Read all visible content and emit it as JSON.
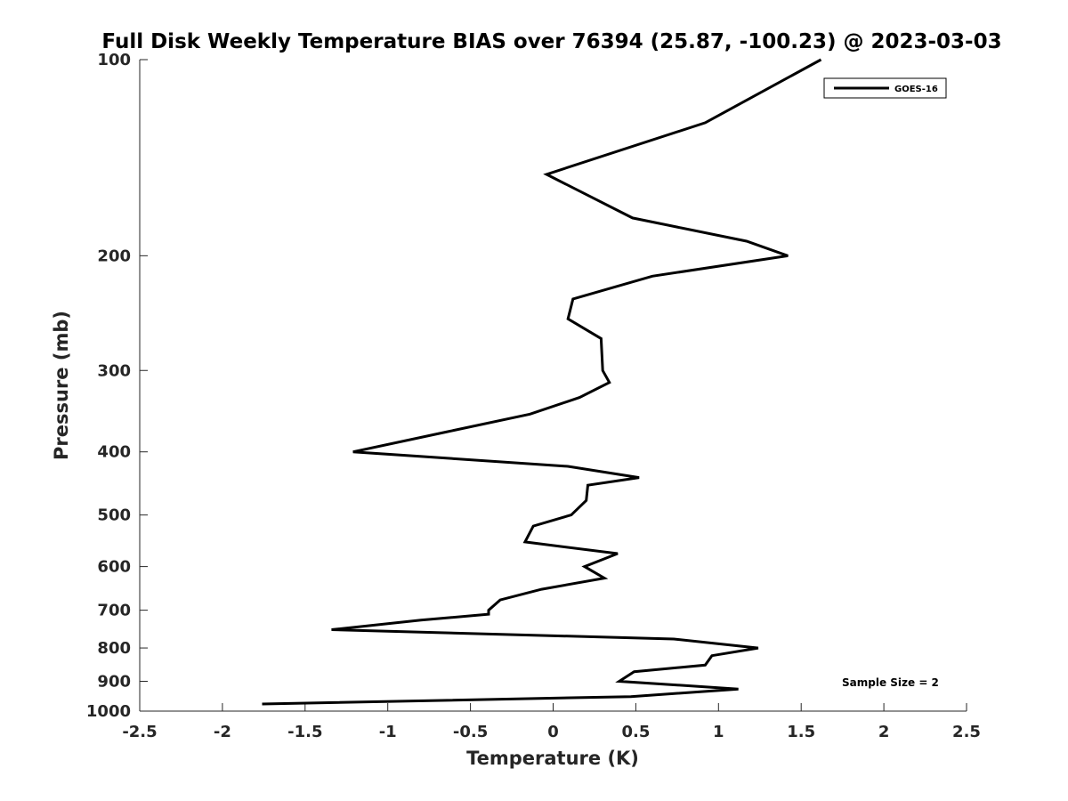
{
  "chart_data": {
    "type": "line",
    "title": "Full Disk Weekly Temperature BIAS over 76394 (25.87, -100.23) @ 2023-03-03",
    "xlabel": "Temperature (K)",
    "ylabel": "Pressure (mb)",
    "xlim": [
      -2.5,
      2.5
    ],
    "ylim": [
      100,
      1000
    ],
    "y_scale": "log",
    "y_reversed": true,
    "x_ticks": [
      -2.5,
      -2,
      -1.5,
      -1,
      -0.5,
      0,
      0.5,
      1,
      1.5,
      2,
      2.5
    ],
    "x_tick_labels": [
      "-2.5",
      "-2",
      "-1.5",
      "-1",
      "-0.5",
      "0",
      "0.5",
      "1",
      "1.5",
      "2",
      "2.5"
    ],
    "y_ticks": [
      100,
      200,
      300,
      400,
      500,
      600,
      700,
      800,
      900,
      1000
    ],
    "y_tick_labels": [
      "100",
      "200",
      "300",
      "400",
      "500",
      "600",
      "700",
      "800",
      "900",
      "1000"
    ],
    "grid": false,
    "legend": {
      "placement": "top-right",
      "entries": [
        "GOES-16"
      ]
    },
    "annotation": "Sample Size = 2",
    "line_color": "#000000",
    "series": [
      {
        "name": "GOES-16",
        "points": [
          [
            1.62,
            100
          ],
          [
            0.92,
            125
          ],
          [
            -0.04,
            150
          ],
          [
            0.48,
            175
          ],
          [
            1.17,
            190
          ],
          [
            1.42,
            200
          ],
          [
            0.6,
            215
          ],
          [
            0.12,
            233
          ],
          [
            0.09,
            250
          ],
          [
            0.29,
            268
          ],
          [
            0.3,
            300
          ],
          [
            0.34,
            313
          ],
          [
            0.16,
            330
          ],
          [
            -0.14,
            350
          ],
          [
            -0.65,
            373
          ],
          [
            -1.21,
            400
          ],
          [
            0.09,
            421
          ],
          [
            0.52,
            438
          ],
          [
            0.21,
            450
          ],
          [
            0.2,
            475
          ],
          [
            0.11,
            500
          ],
          [
            -0.12,
            520
          ],
          [
            -0.17,
            550
          ],
          [
            0.39,
            573
          ],
          [
            0.19,
            600
          ],
          [
            0.31,
            625
          ],
          [
            -0.07,
            650
          ],
          [
            -0.32,
            675
          ],
          [
            -0.39,
            700
          ],
          [
            -0.39,
            710
          ],
          [
            -0.8,
            725
          ],
          [
            -1.34,
            750
          ],
          [
            0.73,
            775
          ],
          [
            1.24,
            800
          ],
          [
            0.96,
            822
          ],
          [
            0.92,
            850
          ],
          [
            0.49,
            870
          ],
          [
            0.4,
            900
          ],
          [
            1.12,
            925
          ],
          [
            0.47,
            950
          ],
          [
            -1.76,
            975
          ]
        ]
      }
    ]
  }
}
